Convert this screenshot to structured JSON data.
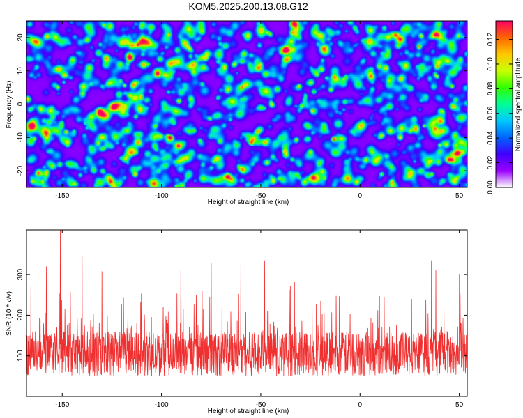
{
  "figure_title": "KOM5.2025.200.13.08.G12",
  "colors": {
    "snr_line": "#f03030",
    "axis": "#000000",
    "colormap": [
      "#ffffff",
      "#9a00ff",
      "#3f00ff",
      "#0064ff",
      "#00c8ff",
      "#00ff96",
      "#32ff00",
      "#c8ff00",
      "#ffc800",
      "#ff6400",
      "#ff0064"
    ]
  },
  "chart_data": [
    {
      "type": "heatmap",
      "title": "",
      "xlabel": "Height of straight line (km)",
      "ylabel": "Frequency (Hz)",
      "xlim": [
        -168,
        54
      ],
      "ylim": [
        -25,
        25
      ],
      "x_ticks": [
        -150,
        -100,
        -50,
        0,
        50
      ],
      "y_ticks": [
        -20,
        -10,
        0,
        10,
        20
      ],
      "grid": false,
      "colorbar": {
        "label": "Normalized spectral amplitude",
        "range": [
          0,
          0.135
        ],
        "ticks": [
          "0.00",
          "0.02",
          "0.04",
          "0.06",
          "0.08",
          "0.10",
          "0.12"
        ]
      }
    },
    {
      "type": "line",
      "title": "",
      "xlabel": "Height of straight line (km)",
      "ylabel": "SNR (10 * v/v)",
      "xlim": [
        -168,
        54
      ],
      "ylim": [
        0,
        410
      ],
      "x_ticks": [
        -150,
        -100,
        -50,
        0,
        50
      ],
      "y_ticks": [
        100,
        200,
        300
      ],
      "grid": false,
      "baseline_mean": 105,
      "notable_peaks": [
        {
          "x": -151,
          "y": 410
        },
        {
          "x": -60,
          "y": 330
        },
        {
          "x": -48,
          "y": 335
        },
        {
          "x": -140,
          "y": 345
        },
        {
          "x": 36,
          "y": 335
        },
        {
          "x": -75,
          "y": 328
        },
        {
          "x": -158,
          "y": 320
        },
        {
          "x": -130,
          "y": 308
        },
        {
          "x": 50,
          "y": 300
        }
      ]
    }
  ]
}
